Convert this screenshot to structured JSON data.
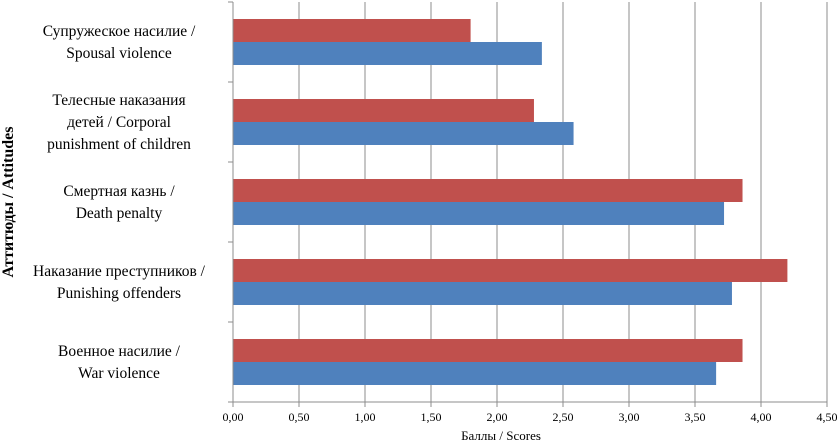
{
  "chart_data": {
    "type": "bar",
    "orientation": "horizontal",
    "title": "",
    "xlabel": "Баллы / Scores",
    "ylabel": "Аттитюды / Attitudes",
    "xlim": [
      0,
      4.5
    ],
    "x_tick_step": 0.5,
    "x_tick_labels": [
      "0,00",
      "0,50",
      "1,00",
      "1,50",
      "2,00",
      "2,50",
      "3,00",
      "3,50",
      "4,00",
      "4,50"
    ],
    "grid": "vertical",
    "legend": "none",
    "categories": [
      [
        "Супружеское насилие /",
        "Spousal violence"
      ],
      [
        "Телесные наказания",
        "детей / Corporal",
        "punishment of children"
      ],
      [
        "Смертная казнь /",
        "Death penalty"
      ],
      [
        "Наказание преступников /",
        "Punishing offenders"
      ],
      [
        "Военное насилие /",
        "War violence"
      ]
    ],
    "series": [
      {
        "name": "series-red",
        "color": "#C0504D",
        "values": [
          1.8,
          2.28,
          3.86,
          4.2,
          3.86
        ]
      },
      {
        "name": "series-blue",
        "color": "#4F81BD",
        "values": [
          2.34,
          2.58,
          3.72,
          3.78,
          3.66
        ]
      }
    ]
  }
}
